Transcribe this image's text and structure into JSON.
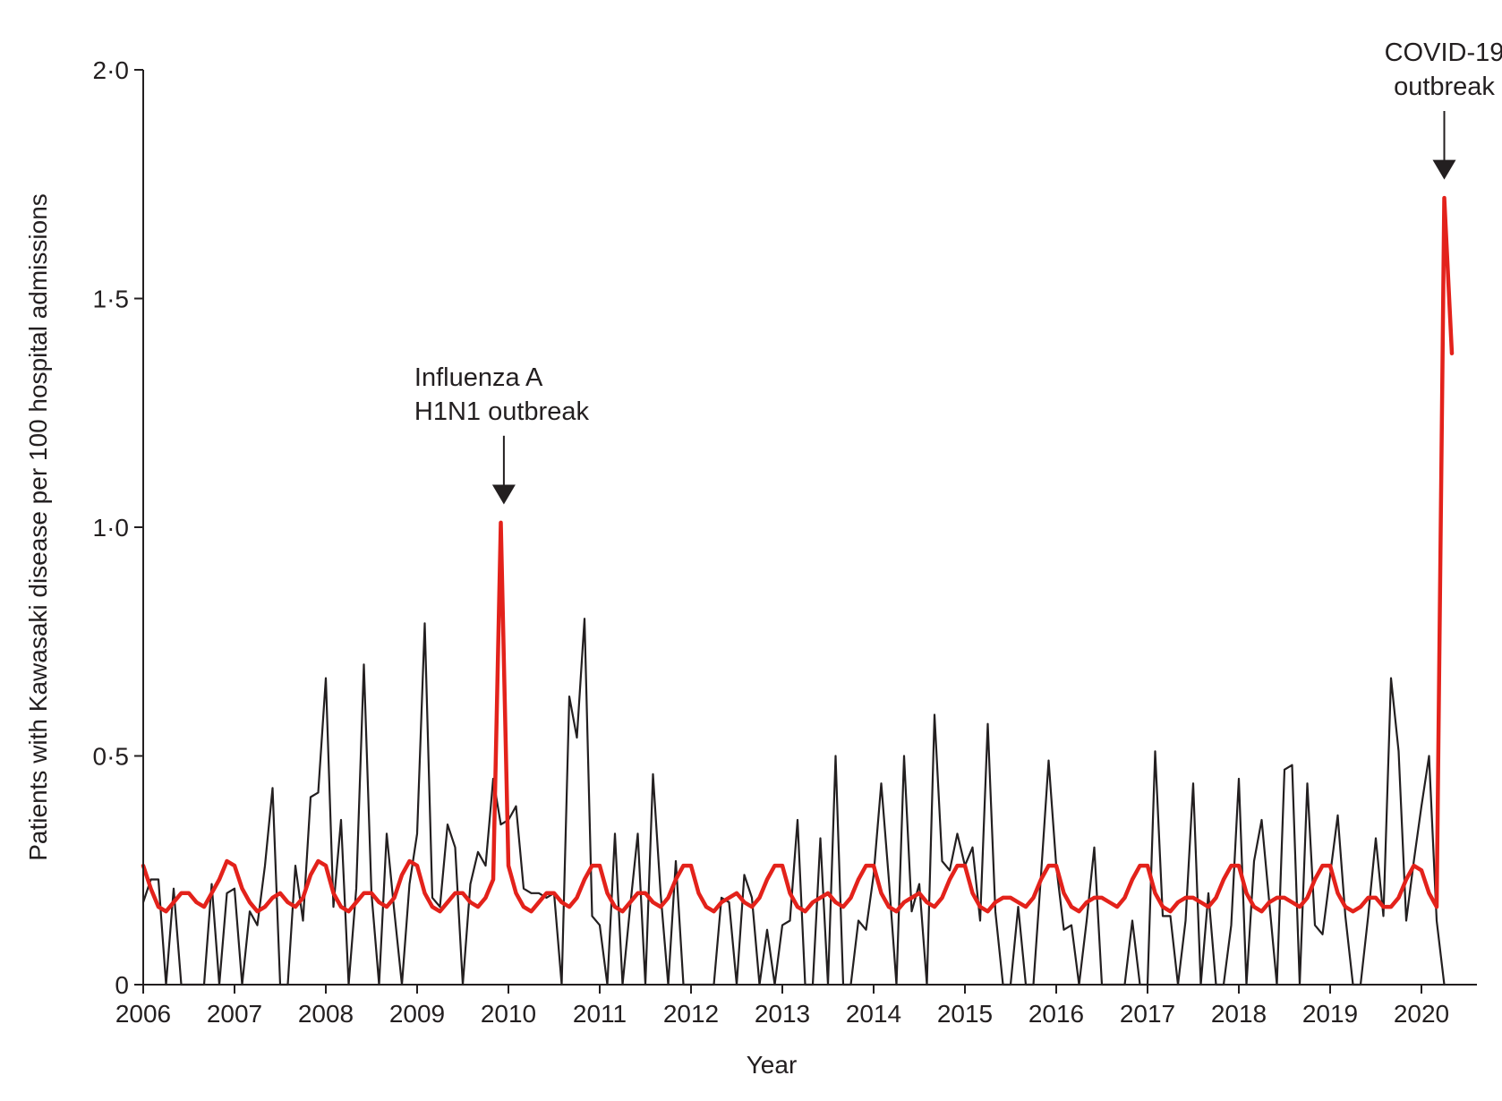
{
  "chart_data": {
    "type": "line",
    "xlabel": "Year",
    "ylabel": "Patients with Kawasaki disease per 100 hospital admissions",
    "xlim": [
      2006,
      2020.83
    ],
    "ylim": [
      0,
      2.0
    ],
    "x_ticks": [
      "2006",
      "2007",
      "2008",
      "2009",
      "2010",
      "2011",
      "2012",
      "2013",
      "2014",
      "2015",
      "2016",
      "2017",
      "2018",
      "2019",
      "2020"
    ],
    "y_ticks": [
      {
        "value": 0,
        "label": "0"
      },
      {
        "value": 0.5,
        "label": "0·5"
      },
      {
        "value": 1.0,
        "label": "1·0"
      },
      {
        "value": 1.5,
        "label": "1·5"
      },
      {
        "value": 2.0,
        "label": "2·0"
      }
    ],
    "grid": false,
    "legend": "none",
    "series": [
      {
        "color": "#231f20",
        "line_width": 2.2,
        "x_start": 2006,
        "x_step": 0.0833333,
        "values": [
          0.18,
          0.23,
          0.23,
          0,
          0.21,
          0,
          0,
          0,
          0,
          0.22,
          0,
          0.2,
          0.21,
          0,
          0.16,
          0.13,
          0.26,
          0.43,
          0,
          0,
          0.26,
          0.14,
          0.41,
          0.42,
          0.67,
          0.17,
          0.36,
          0,
          0.21,
          0.7,
          0.2,
          0,
          0.33,
          0.16,
          0,
          0.22,
          0.33,
          0.79,
          0.19,
          0.17,
          0.35,
          0.3,
          0,
          0.22,
          0.29,
          0.26,
          0.45,
          0.35,
          0.36,
          0.39,
          0.21,
          0.2,
          0.2,
          0.19,
          0.2,
          0,
          0.63,
          0.54,
          0.8,
          0.15,
          0.13,
          0,
          0.33,
          0,
          0.17,
          0.33,
          0,
          0.46,
          0.2,
          0,
          0.27,
          0,
          0,
          0,
          0,
          0,
          0.19,
          0.18,
          0,
          0.24,
          0.19,
          0,
          0.12,
          0,
          0.13,
          0.14,
          0.36,
          0,
          0,
          0.32,
          0,
          0.5,
          0,
          0,
          0.14,
          0.12,
          0.24,
          0.44,
          0.23,
          0,
          0.5,
          0.16,
          0.22,
          0,
          0.59,
          0.27,
          0.25,
          0.33,
          0.26,
          0.3,
          0.14,
          0.57,
          0.16,
          0,
          0,
          0.17,
          0,
          0,
          0.24,
          0.49,
          0.26,
          0.12,
          0.13,
          0,
          0.14,
          0.3,
          0,
          0,
          0,
          0,
          0.14,
          0,
          0,
          0.51,
          0.15,
          0.15,
          0,
          0.14,
          0.44,
          0,
          0.2,
          0,
          0,
          0.13,
          0.45,
          0,
          0.27,
          0.36,
          0.18,
          0,
          0.47,
          0.48,
          0,
          0.44,
          0.13,
          0.11,
          0.24,
          0.37,
          0.15,
          0,
          0,
          0.15,
          0.32,
          0.15,
          0.67,
          0.51,
          0.14,
          0.27,
          0.39,
          0.5,
          0.14,
          0
        ]
      },
      {
        "color": "#e3221b",
        "line_width": 4.5,
        "x_start": 2006,
        "x_step": 0.0833333,
        "values": [
          0.26,
          0.21,
          0.17,
          0.16,
          0.18,
          0.2,
          0.2,
          0.18,
          0.17,
          0.2,
          0.23,
          0.27,
          0.26,
          0.21,
          0.18,
          0.16,
          0.17,
          0.19,
          0.2,
          0.18,
          0.17,
          0.19,
          0.24,
          0.27,
          0.26,
          0.2,
          0.17,
          0.16,
          0.18,
          0.2,
          0.2,
          0.18,
          0.17,
          0.19,
          0.24,
          0.27,
          0.26,
          0.2,
          0.17,
          0.16,
          0.18,
          0.2,
          0.2,
          0.18,
          0.17,
          0.19,
          0.23,
          1.01,
          0.26,
          0.2,
          0.17,
          0.16,
          0.18,
          0.2,
          0.2,
          0.18,
          0.17,
          0.19,
          0.23,
          0.26,
          0.26,
          0.2,
          0.17,
          0.16,
          0.18,
          0.2,
          0.2,
          0.18,
          0.17,
          0.19,
          0.23,
          0.26,
          0.26,
          0.2,
          0.17,
          0.16,
          0.18,
          0.19,
          0.2,
          0.18,
          0.17,
          0.19,
          0.23,
          0.26,
          0.26,
          0.2,
          0.17,
          0.16,
          0.18,
          0.19,
          0.2,
          0.18,
          0.17,
          0.19,
          0.23,
          0.26,
          0.26,
          0.2,
          0.17,
          0.16,
          0.18,
          0.19,
          0.2,
          0.18,
          0.17,
          0.19,
          0.23,
          0.26,
          0.26,
          0.2,
          0.17,
          0.16,
          0.18,
          0.19,
          0.19,
          0.18,
          0.17,
          0.19,
          0.23,
          0.26,
          0.26,
          0.2,
          0.17,
          0.16,
          0.18,
          0.19,
          0.19,
          0.18,
          0.17,
          0.19,
          0.23,
          0.26,
          0.26,
          0.2,
          0.17,
          0.16,
          0.18,
          0.19,
          0.19,
          0.18,
          0.17,
          0.19,
          0.23,
          0.26,
          0.26,
          0.2,
          0.17,
          0.16,
          0.18,
          0.19,
          0.19,
          0.18,
          0.17,
          0.19,
          0.23,
          0.26,
          0.26,
          0.2,
          0.17,
          0.16,
          0.17,
          0.19,
          0.19,
          0.17,
          0.17,
          0.19,
          0.23,
          0.26,
          0.25,
          0.2,
          0.17,
          1.72,
          1.38
        ]
      }
    ],
    "annotations": [
      {
        "lines": [
          "Influenza A",
          "H1N1 outbreak"
        ],
        "x": 2009.95,
        "arrow_from_y": 1.2,
        "arrow_to_y": 1.05
      },
      {
        "lines": [
          "COVID-19",
          "outbreak"
        ],
        "x": 2020.25,
        "arrow_from_y": 1.91,
        "arrow_to_y": 1.76
      }
    ]
  }
}
